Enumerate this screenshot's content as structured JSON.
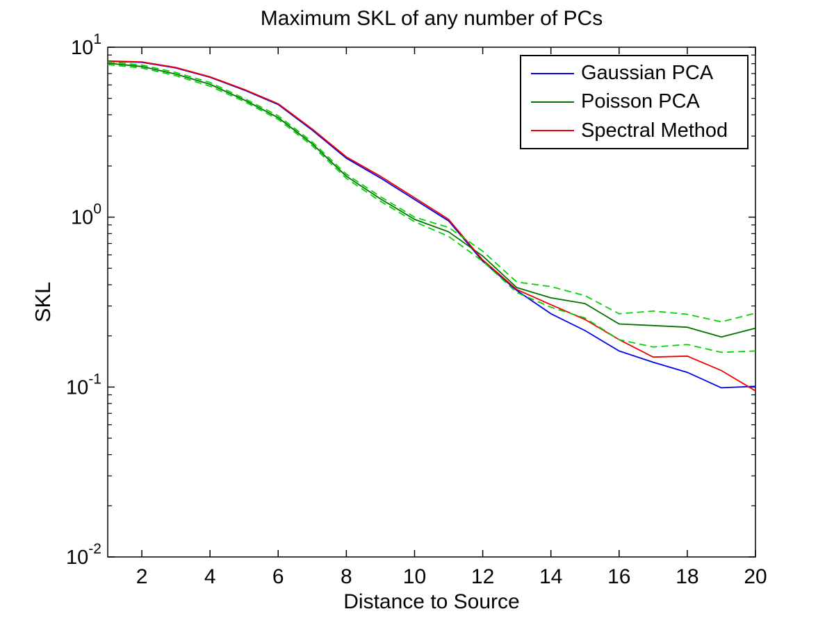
{
  "figure": {
    "background": "#ffffff",
    "text_color": "#000000"
  },
  "chart_data": {
    "type": "line",
    "title": "Maximum SKL of any number of PCs",
    "xlabel": "Distance to Source",
    "ylabel": "SKL",
    "x_axis": "linear",
    "y_axis": "log10",
    "xlim": [
      1,
      20
    ],
    "ylim_log": [
      -2,
      1
    ],
    "xticks": [
      2,
      4,
      6,
      8,
      10,
      12,
      14,
      16,
      18,
      20
    ],
    "yticks_exponents": [
      1,
      0,
      -1,
      -2
    ],
    "ytick_base": "10",
    "grid": "off",
    "legend_position": "top-right",
    "x": [
      1,
      2,
      3,
      4,
      5,
      6,
      7,
      8,
      9,
      10,
      11,
      12,
      13,
      14,
      15,
      16,
      17,
      18,
      19,
      20
    ],
    "series": [
      {
        "name": "Gaussian PCA",
        "color": "#0000ee",
        "style": "solid",
        "in_legend": true,
        "values": [
          8.25,
          8.15,
          7.55,
          6.65,
          5.6,
          4.6,
          3.25,
          2.22,
          1.7,
          1.27,
          0.95,
          0.55,
          0.37,
          0.27,
          0.215,
          0.163,
          0.14,
          0.122,
          0.099,
          0.101
        ]
      },
      {
        "name": "Poisson PCA",
        "color": "#006f00",
        "style": "solid",
        "in_legend": true,
        "values": [
          8.05,
          7.7,
          6.95,
          6.05,
          4.9,
          3.85,
          2.7,
          1.74,
          1.28,
          0.97,
          0.82,
          0.59,
          0.385,
          0.335,
          0.31,
          0.235,
          0.23,
          0.225,
          0.197,
          0.222
        ]
      },
      {
        "name": "Spectral Method",
        "color": "#ee0000",
        "style": "solid",
        "in_legend": true,
        "values": [
          8.3,
          8.2,
          7.6,
          6.7,
          5.65,
          4.65,
          3.3,
          2.26,
          1.74,
          1.3,
          0.97,
          0.56,
          0.375,
          0.305,
          0.25,
          0.19,
          0.15,
          0.152,
          0.125,
          0.095
        ]
      },
      {
        "name": "Poisson PCA upper bound",
        "color": "#00d400",
        "style": "dashed",
        "in_legend": false,
        "values": [
          8.2,
          7.85,
          7.1,
          6.2,
          5.0,
          3.95,
          2.77,
          1.79,
          1.32,
          1.0,
          0.87,
          0.63,
          0.415,
          0.39,
          0.345,
          0.27,
          0.28,
          0.268,
          0.242,
          0.272
        ]
      },
      {
        "name": "Poisson PCA lower bound",
        "color": "#00d400",
        "style": "dashed",
        "in_legend": false,
        "values": [
          7.9,
          7.55,
          6.8,
          5.9,
          4.8,
          3.76,
          2.63,
          1.69,
          1.24,
          0.94,
          0.77,
          0.55,
          0.36,
          0.295,
          0.255,
          0.19,
          0.172,
          0.178,
          0.16,
          0.163
        ]
      }
    ],
    "legend_entries": [
      "Gaussian PCA",
      "Poisson PCA",
      "Spectral Method"
    ]
  }
}
